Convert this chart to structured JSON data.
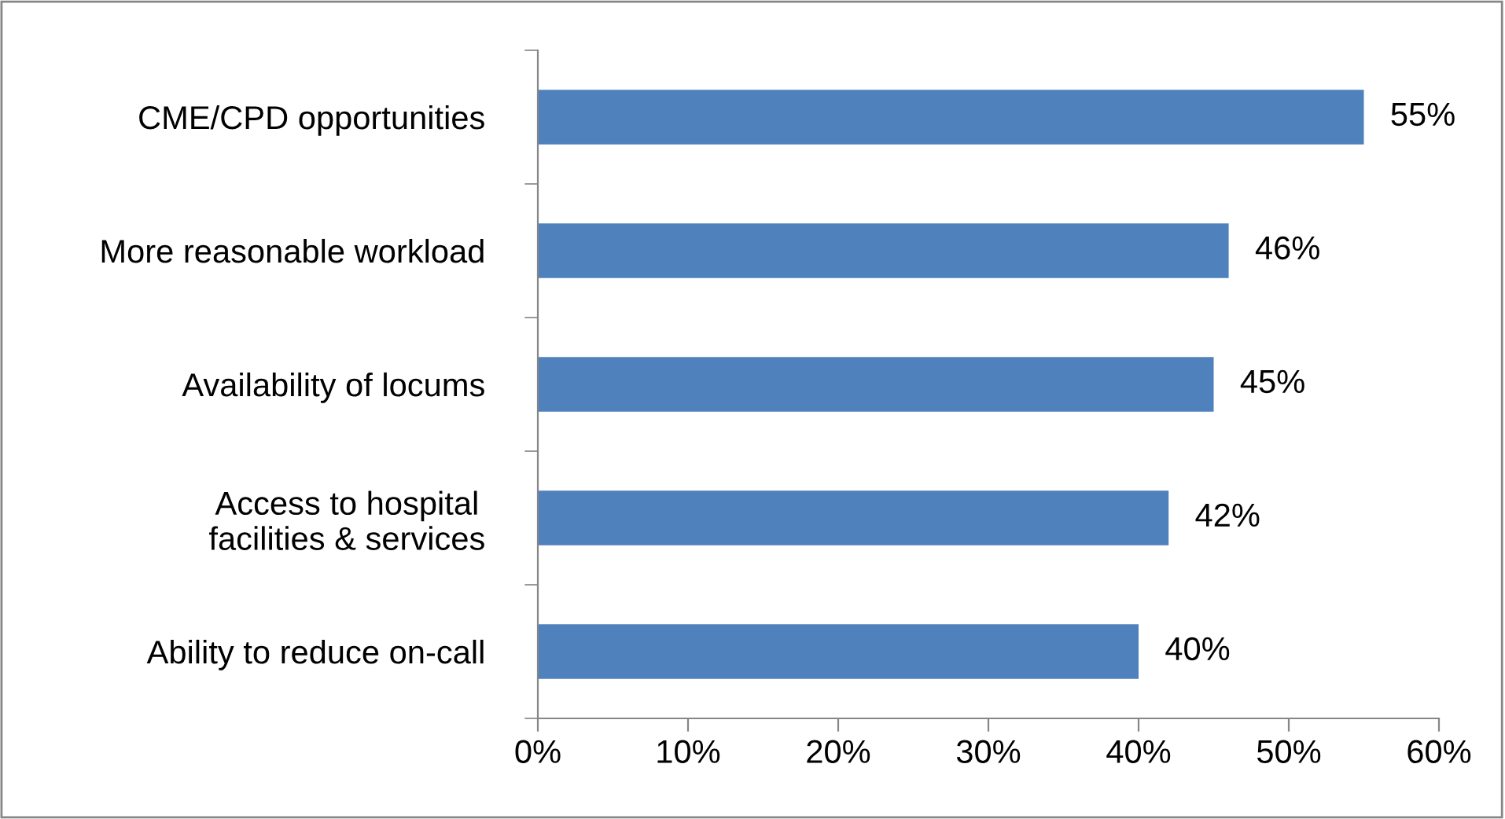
{
  "chart_data": {
    "type": "bar",
    "orientation": "horizontal",
    "categories": [
      "CME/CPD opportunities",
      "More reasonable workload",
      "Availability of locums",
      "Access to hospital\nfacilities & services",
      "Ability to reduce on-call"
    ],
    "values": [
      55,
      46,
      45,
      42,
      40
    ],
    "value_labels": [
      "55%",
      "46%",
      "45%",
      "42%",
      "40%"
    ],
    "color": "#4f81bd",
    "xlim": [
      0,
      60
    ],
    "xticks": [
      {
        "value": 0,
        "label": "0%"
      },
      {
        "value": 10,
        "label": "10%"
      },
      {
        "value": 20,
        "label": "20%"
      },
      {
        "value": 30,
        "label": "30%"
      },
      {
        "value": 40,
        "label": "40%"
      },
      {
        "value": 50,
        "label": "50%"
      },
      {
        "value": 60,
        "label": "60%"
      }
    ],
    "grid": false,
    "legend": false
  }
}
